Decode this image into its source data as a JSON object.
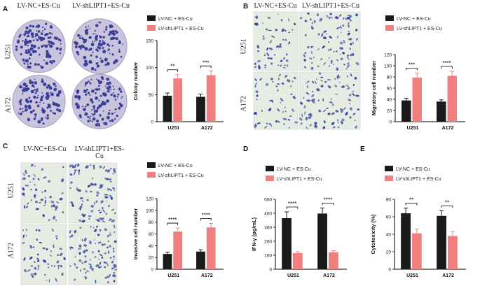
{
  "panels": {
    "A": {
      "letter": "A",
      "col1": "LV-NC+ES-Cu",
      "col2": "LV-shLIPT1+ES-Cu",
      "row1": "U251",
      "row2": "A172"
    },
    "B": {
      "letter": "B",
      "col1": "LV-NC+ES-Cu",
      "col2": "LV-shLIPT1+ES-Cu",
      "row1": "U251",
      "row2": "A172"
    },
    "C": {
      "letter": "C",
      "col1": "LV-NC+ES-Cu",
      "col2": "LV-shLIPT1+ES-Cu",
      "row1": "U251",
      "row2": "A172"
    },
    "D": {
      "letter": "D"
    },
    "E": {
      "letter": "E"
    }
  },
  "colors": {
    "nc": "#1a1a1a",
    "sh": "#f08080",
    "dish": "#c9c3dc",
    "colony": "#3a3f9a",
    "field": "#e6ece2",
    "cells": "#2b3a9c"
  },
  "chart_data": [
    {
      "id": "A",
      "type": "bar",
      "categories": [
        "U251",
        "A172"
      ],
      "series": [
        {
          "name": "LV-NC + ES-Cu",
          "values": [
            48,
            46
          ],
          "errors": [
            5,
            5
          ]
        },
        {
          "name": "LV-shLIPT1 + ES-Cu",
          "values": [
            80,
            86
          ],
          "errors": [
            7,
            8
          ]
        }
      ],
      "ylabel": "Colony number",
      "ylim": [
        0,
        150
      ],
      "yticks": [
        0,
        50,
        100,
        150
      ],
      "significance": [
        "**",
        "***"
      ]
    },
    {
      "id": "B",
      "type": "bar",
      "categories": [
        "U251",
        "A172"
      ],
      "series": [
        {
          "name": "LV-NC + ES-Cu",
          "values": [
            38,
            36
          ],
          "errors": [
            4,
            3
          ]
        },
        {
          "name": "LV-shLIPT1 + ES-Cu",
          "values": [
            79,
            82
          ],
          "errors": [
            8,
            8
          ]
        }
      ],
      "ylabel": "Migratory cell number",
      "ylim": [
        0,
        120
      ],
      "yticks": [
        0,
        20,
        40,
        60,
        80,
        100,
        120
      ],
      "significance": [
        "***",
        "****"
      ]
    },
    {
      "id": "C",
      "type": "bar",
      "categories": [
        "U251",
        "A172"
      ],
      "series": [
        {
          "name": "LV-NC + ES-Cu",
          "values": [
            26,
            30
          ],
          "errors": [
            3,
            3
          ]
        },
        {
          "name": "LV-shLIPT1 + ES-Cu",
          "values": [
            64,
            71
          ],
          "errors": [
            6,
            7
          ]
        }
      ],
      "ylabel": "Invasive cell number",
      "ylim": [
        0,
        120
      ],
      "yticks": [
        0,
        20,
        40,
        60,
        80,
        100,
        120
      ],
      "significance": [
        "****",
        "****"
      ]
    },
    {
      "id": "D",
      "type": "bar",
      "categories": [
        "U251",
        "A172"
      ],
      "series": [
        {
          "name": "LV-NC + ES-Cu",
          "values": [
            365,
            398
          ],
          "errors": [
            45,
            40
          ]
        },
        {
          "name": "LV-shLIPT1 + ES-Cu",
          "values": [
            115,
            122
          ],
          "errors": [
            10,
            10
          ]
        }
      ],
      "ylabel": "IFN-γ (pg/mL)",
      "ylim": [
        0,
        500
      ],
      "yticks": [
        0,
        100,
        200,
        300,
        400,
        500
      ],
      "significance": [
        "****",
        "****"
      ]
    },
    {
      "id": "E",
      "type": "bar",
      "categories": [
        "U251",
        "A172"
      ],
      "series": [
        {
          "name": "LV-NC + ES-Cu",
          "values": [
            64,
            61
          ],
          "errors": [
            6,
            6
          ]
        },
        {
          "name": "LV-shLIPT1 + ES-Cu",
          "values": [
            41,
            38
          ],
          "errors": [
            5,
            5
          ]
        }
      ],
      "ylabel": "Cytotoxicity (%)",
      "ylim": [
        0,
        80
      ],
      "yticks": [
        0,
        20,
        40,
        60,
        80
      ],
      "significance": [
        "**",
        "**"
      ]
    }
  ]
}
